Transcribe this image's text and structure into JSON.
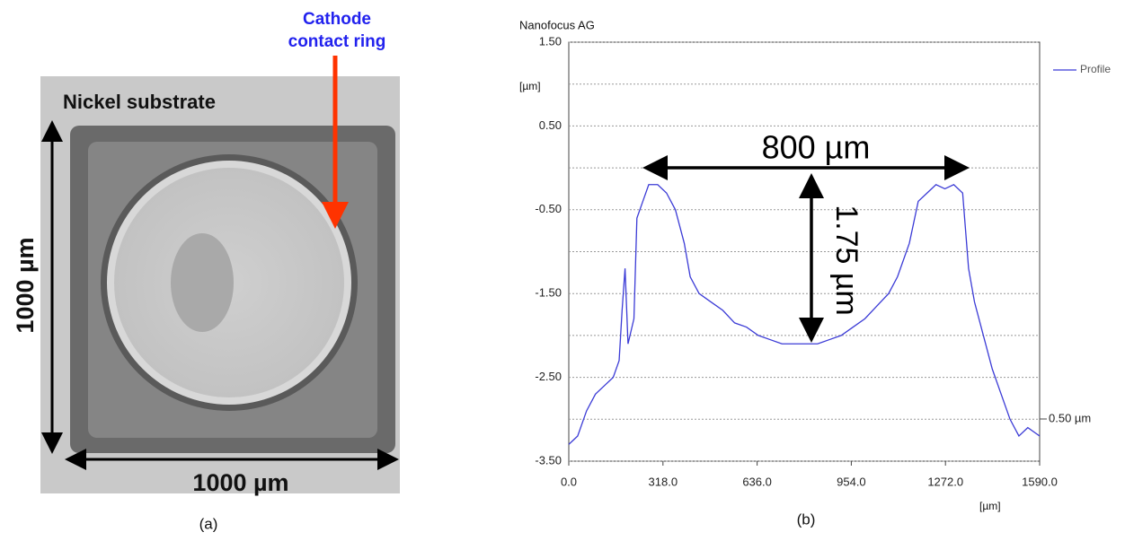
{
  "panel_a": {
    "ring_label_1": "Cathode",
    "ring_label_2": "contact ring",
    "substrate_label": "Nickel substrate",
    "width_label": "1000 µm",
    "height_label": "1000 µm",
    "caption": "(a)"
  },
  "chart_data": {
    "type": "line",
    "title": "Nanofocus AG",
    "caption": "(b)",
    "y_label": "[µm]",
    "x_label": "[µm]",
    "annotations": [
      "800 µm",
      "1.75 µm",
      "0.50 µm"
    ],
    "xlim": [
      0,
      1590
    ],
    "ylim": [
      -3.5,
      1.5
    ],
    "xticks": [
      {
        "value": 0,
        "label": "0.0"
      },
      {
        "value": 318,
        "label": "318.0"
      },
      {
        "value": 636,
        "label": "636.0"
      },
      {
        "value": 954,
        "label": "954.0"
      },
      {
        "value": 1272,
        "label": "1272.0"
      },
      {
        "value": 1590,
        "label": "1590.0"
      }
    ],
    "yticks": [
      {
        "value": 1.5,
        "label": "1.50"
      },
      {
        "value": 0.5,
        "label": "0.50"
      },
      {
        "value": -0.5,
        "label": "-0.50"
      },
      {
        "value": -1.5,
        "label": "-1.50"
      },
      {
        "value": -2.5,
        "label": "-2.50"
      },
      {
        "value": -3.5,
        "label": "-3.50"
      }
    ],
    "minor_yticks": [
      1.0,
      0.0,
      -1.0,
      -2.0,
      -3.0
    ],
    "grid": true,
    "legend": "top-right",
    "series": [
      {
        "name": "Profile",
        "color": "#3b3bd6",
        "x": [
          0,
          30,
          60,
          90,
          120,
          150,
          170,
          180,
          190,
          200,
          220,
          230,
          250,
          270,
          300,
          330,
          360,
          390,
          410,
          440,
          480,
          520,
          560,
          600,
          640,
          680,
          720,
          760,
          800,
          840,
          880,
          920,
          960,
          1000,
          1040,
          1080,
          1110,
          1150,
          1180,
          1210,
          1240,
          1270,
          1300,
          1330,
          1350,
          1370,
          1400,
          1430,
          1460,
          1490,
          1520,
          1550,
          1590
        ],
        "values": [
          -3.3,
          -3.2,
          -2.9,
          -2.7,
          -2.6,
          -2.5,
          -2.3,
          -1.7,
          -1.2,
          -2.1,
          -1.8,
          -0.6,
          -0.4,
          -0.2,
          -0.2,
          -0.3,
          -0.5,
          -0.9,
          -1.3,
          -1.5,
          -1.6,
          -1.7,
          -1.85,
          -1.9,
          -2.0,
          -2.05,
          -2.1,
          -2.1,
          -2.1,
          -2.1,
          -2.05,
          -2.0,
          -1.9,
          -1.8,
          -1.65,
          -1.5,
          -1.3,
          -0.9,
          -0.4,
          -0.3,
          -0.2,
          -0.25,
          -0.2,
          -0.3,
          -1.2,
          -1.6,
          -2.0,
          -2.4,
          -2.7,
          -3.0,
          -3.2,
          -3.1,
          -3.2
        ]
      }
    ]
  }
}
